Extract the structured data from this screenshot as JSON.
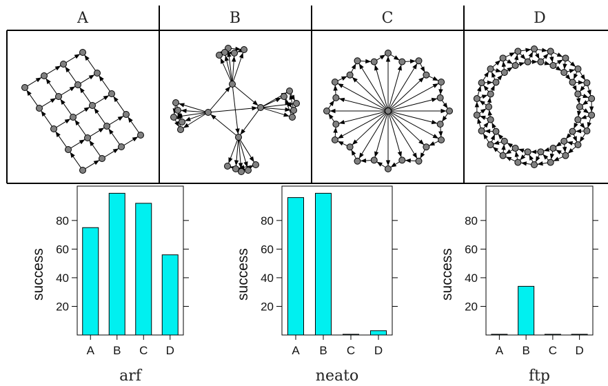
{
  "panels": {
    "headers": [
      "A",
      "B",
      "C",
      "D"
    ]
  },
  "colors": {
    "bar_fill": "#00f0f0",
    "node_fill": "#808080",
    "stroke": "#000000"
  },
  "chart_data": [
    {
      "type": "bar",
      "title": "arf",
      "xlabel": "",
      "ylabel": "success",
      "categories": [
        "A",
        "B",
        "C",
        "D"
      ],
      "values": [
        75,
        99,
        92,
        56
      ],
      "ylim": [
        0,
        104
      ],
      "yticks": [
        20,
        40,
        60,
        80
      ],
      "grid": false
    },
    {
      "type": "bar",
      "title": "neato",
      "xlabel": "",
      "ylabel": "success",
      "categories": [
        "A",
        "B",
        "C",
        "D"
      ],
      "values": [
        96,
        99,
        0.5,
        3
      ],
      "ylim": [
        0,
        104
      ],
      "yticks": [
        20,
        40,
        60,
        80
      ],
      "grid": false
    },
    {
      "type": "bar",
      "title": "ftp",
      "xlabel": "",
      "ylabel": "success",
      "categories": [
        "A",
        "B",
        "C",
        "D"
      ],
      "values": [
        0.5,
        34,
        0.5,
        0.5
      ],
      "ylim": [
        0,
        104
      ],
      "yticks": [
        20,
        40,
        60,
        80
      ],
      "grid": false
    }
  ]
}
